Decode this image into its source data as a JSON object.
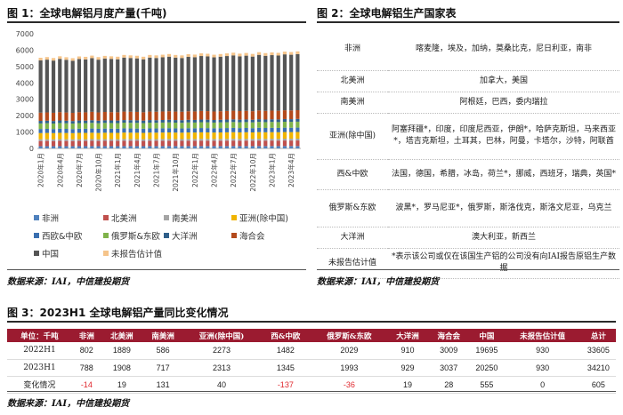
{
  "fig1": {
    "title": "图 1：全球电解铝月度产量(千吨)",
    "source": "数据来源：IAI，中信建投期货"
  },
  "fig2": {
    "title": "图 2：全球电解铝生产国家表",
    "source": "数据来源：IAI，中信建投期货",
    "rows": [
      {
        "region": "非洲",
        "countries": "喀麦隆，埃及，加纳，莫桑比克，尼日利亚，南非"
      },
      {
        "region": "北美洲",
        "countries": "加拿大，美国"
      },
      {
        "region": "南美洲",
        "countries": "阿根廷，巴西，委内瑞拉"
      },
      {
        "region": "亚洲(除中国)",
        "countries": "阿塞拜疆*，印度，印度尼西亚，伊朗*，哈萨克斯坦，马来西亚*，塔吉克斯坦，土耳其，巴林，阿曼，卡塔尔，沙特，阿联酋"
      },
      {
        "region": "西&中欧",
        "countries": "法国，德国，希腊，冰岛，荷兰*，挪威，西班牙，瑞典，英国*"
      },
      {
        "region": "俄罗斯&东欧",
        "countries": "波黑*，罗马尼亚*，俄罗斯，斯洛伐克，斯洛文尼亚，乌克兰"
      },
      {
        "region": "大洋洲",
        "countries": "澳大利亚，新西兰"
      },
      {
        "region": "未报告估计值",
        "countries": "*表示该公司或仅在该国生产铝的公司没有向IAI报告原铝生产数据"
      }
    ]
  },
  "fig3": {
    "title": "图 3：2023H1 全球电解铝产量同比变化情况",
    "source": "数据来源：IAI，中信建投期货",
    "headers": [
      "单位：千吨",
      "非洲",
      "北美洲",
      "南美洲",
      "亚洲(除中国)",
      "西&中欧",
      "俄罗斯&东欧",
      "大洋洲",
      "海合会",
      "中国",
      "未报告估计值",
      "总计"
    ],
    "rows": [
      {
        "label": "2022H1",
        "cells": [
          "802",
          "1889",
          "586",
          "2273",
          "1482",
          "2029",
          "910",
          "3009",
          "19695",
          "930",
          "33605"
        ],
        "neg": []
      },
      {
        "label": "2023H1",
        "cells": [
          "788",
          "1908",
          "717",
          "2313",
          "1345",
          "1993",
          "929",
          "3037",
          "20250",
          "930",
          "34210"
        ],
        "neg": []
      },
      {
        "label": "变化情况",
        "cells": [
          "-14",
          "19",
          "131",
          "40",
          "-137",
          "-36",
          "19",
          "28",
          "555",
          "0",
          "605"
        ],
        "neg": [
          0,
          4,
          5
        ]
      }
    ]
  },
  "chart_data": {
    "type": "bar",
    "stacked": true,
    "title": "全球电解铝月度产量(千吨)",
    "xlabel": "",
    "ylabel": "",
    "ylim": [
      0,
      7000
    ],
    "yticks": [
      0,
      1000,
      2000,
      3000,
      4000,
      5000,
      6000,
      7000
    ],
    "xticks": [
      "2020年1月",
      "2020年4月",
      "2020年7月",
      "2020年10月",
      "2021年1月",
      "2021年4月",
      "2021年7月",
      "2021年10月",
      "2022年1月",
      "2022年4月",
      "2022年7月",
      "2022年10月",
      "2023年1月",
      "2023年4月"
    ],
    "months": 41,
    "series": [
      {
        "name": "非洲",
        "color": "#4f81bd",
        "level": 134
      },
      {
        "name": "北美洲",
        "color": "#c0504d",
        "level": 318
      },
      {
        "name": "南美洲",
        "color": "#a5a5a5",
        "level": 105
      },
      {
        "name": "亚洲(除中国)",
        "color": "#f0b400",
        "level": 380
      },
      {
        "name": "西欧&中欧",
        "color": "#3a6fb0",
        "level": 250
      },
      {
        "name": "俄罗斯&东欧",
        "color": "#7fb24a",
        "level": 338
      },
      {
        "name": "大洋洲",
        "color": "#2f5f8a",
        "level": 155
      },
      {
        "name": "海合会",
        "color": "#b34a1c",
        "level": 500
      },
      {
        "name": "中国",
        "color": "#555555",
        "level": 3200
      },
      {
        "name": "未报告估计值",
        "color": "#f5c48a",
        "level": 155
      }
    ],
    "legend": [
      "非洲",
      "北美洲",
      "南美洲",
      "亚洲(除中国)",
      "西欧&中欧",
      "俄罗斯&东欧",
      "大洋洲",
      "海合会",
      "中国",
      "未报告估计值"
    ]
  }
}
